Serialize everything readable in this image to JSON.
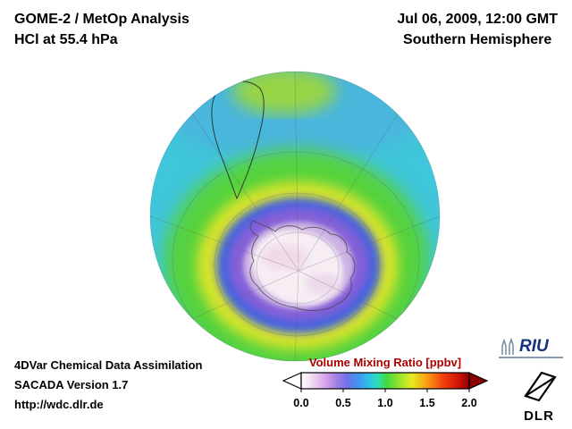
{
  "header": {
    "title_line1": "GOME-2 / MetOp Analysis",
    "title_line2": "HCl at 55.4 hPa",
    "date_line": "Jul 06, 2009, 12:00 GMT",
    "hemisphere_line": "Southern Hemisphere"
  },
  "footer": {
    "line1": "4DVar Chemical Data Assimilation",
    "line2": "SACADA Version 1.7",
    "line3": "http://wdc.dlr.de"
  },
  "colorbar": {
    "title": "Volume Mixing Ratio [ppbv]",
    "tick_labels": [
      "0.0",
      "0.5",
      "1.0",
      "1.5",
      "2.0"
    ],
    "title_color": "#aa0000"
  },
  "logos": {
    "riu_text": "RIU",
    "dlr_text": "DLR"
  },
  "chart_data": {
    "type": "heatmap",
    "title": "GOME-2 / MetOp Analysis — HCl at 55.4 hPa",
    "datetime": "Jul 06, 2009, 12:00 GMT",
    "projection": "orthographic, Southern Hemisphere",
    "variable": "HCl volume mixing ratio",
    "pressure_level_hPa": 55.4,
    "units": "ppbv",
    "colorbar": {
      "label": "Volume Mixing Ratio [ppbv]",
      "range": [
        0.0,
        2.0
      ],
      "ticks": [
        0.0,
        0.5,
        1.0,
        1.5,
        2.0
      ],
      "out_of_range_low_color": "#ffffff",
      "out_of_range_high_color": "#8b0000",
      "stops": [
        {
          "value": 0.0,
          "color": "#ffffff"
        },
        {
          "value": 0.12,
          "color": "#f3dcf0"
        },
        {
          "value": 0.28,
          "color": "#d8a6ea"
        },
        {
          "value": 0.42,
          "color": "#a27fe4"
        },
        {
          "value": 0.55,
          "color": "#6f74ec"
        },
        {
          "value": 0.68,
          "color": "#3f96f0"
        },
        {
          "value": 0.8,
          "color": "#2fc0e8"
        },
        {
          "value": 0.92,
          "color": "#2edfae"
        },
        {
          "value": 1.02,
          "color": "#44d83e"
        },
        {
          "value": 1.18,
          "color": "#9fe42c"
        },
        {
          "value": 1.32,
          "color": "#e6ea22"
        },
        {
          "value": 1.5,
          "color": "#fb9b14"
        },
        {
          "value": 1.7,
          "color": "#f23c0c"
        },
        {
          "value": 1.88,
          "color": "#cc1206"
        },
        {
          "value": 2.0,
          "color": "#8b0000"
        }
      ]
    },
    "regions": [
      {
        "name": "outer mid-latitude band (cyan)",
        "approx_value_ppbv": 0.85,
        "color_hex": "#3fc6da"
      },
      {
        "name": "upper subtropical band (blue)",
        "approx_value_ppbv": 0.7,
        "color_hex": "#52aadf"
      },
      {
        "name": "mid-latitude annulus (green)",
        "approx_value_ppbv": 1.05,
        "color_hex": "#54d23c"
      },
      {
        "name": "vortex-edge ring (yellow)",
        "approx_value_ppbv": 1.3,
        "color_hex": "#d8e42c"
      },
      {
        "name": "vortex collar outer ring (blue)",
        "approx_value_ppbv": 0.6,
        "color_hex": "#3f62e0"
      },
      {
        "name": "vortex collar inner ring (purple)",
        "approx_value_ppbv": 0.45,
        "color_hex": "#8460d8"
      },
      {
        "name": "inner vortex (lavender)",
        "approx_value_ppbv": 0.3,
        "color_hex": "#cdb2e4"
      },
      {
        "name": "polar vortex core over Antarctica (white/pink)",
        "approx_value_ppbv": 0.1,
        "color_hex": "#f7eef4"
      },
      {
        "name": "top-rim equatorward patch (yellow-green)",
        "approx_value_ppbv": 1.2,
        "color_hex": "#a0d834"
      }
    ],
    "map_features": [
      "South America coastline",
      "Antarctica coastline",
      "latitude-longitude graticule"
    ]
  }
}
